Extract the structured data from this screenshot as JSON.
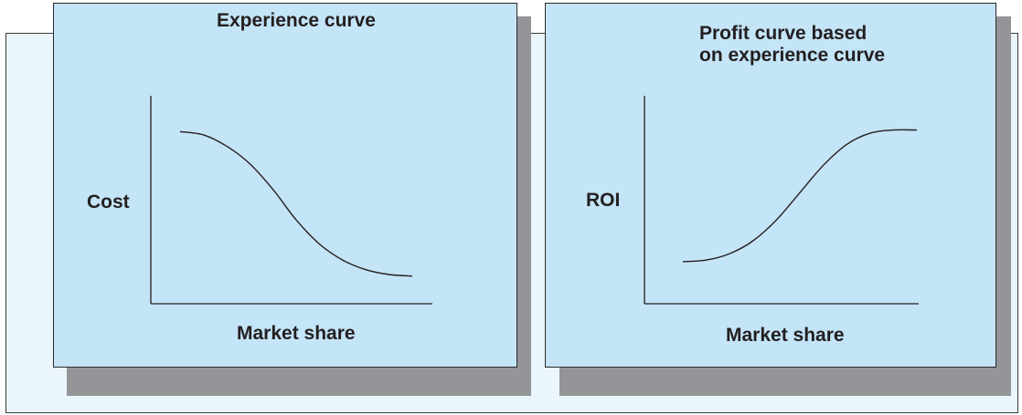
{
  "figure": {
    "background": "#eaf5fc",
    "panel_fill": "#c4e4f7",
    "shadow": "#939598"
  },
  "chart_data": [
    {
      "type": "line",
      "title": "Experience curve",
      "xlabel": "Market share",
      "ylabel": "Cost",
      "trend": "decreasing",
      "x": [
        0,
        0.1,
        0.2,
        0.3,
        0.4,
        0.5,
        0.6,
        0.7,
        0.8,
        0.9,
        1.0
      ],
      "y": [
        0.93,
        0.91,
        0.84,
        0.73,
        0.57,
        0.38,
        0.23,
        0.13,
        0.07,
        0.04,
        0.03
      ],
      "xlim": [
        0,
        1
      ],
      "ylim": [
        0,
        1
      ],
      "grid": false,
      "ticks": false
    },
    {
      "type": "line",
      "title": "Profit curve based\non experience curve",
      "xlabel": "Market share",
      "ylabel": "ROI",
      "trend": "increasing",
      "x": [
        0,
        0.1,
        0.2,
        0.3,
        0.4,
        0.5,
        0.6,
        0.7,
        0.8,
        0.9,
        1.0
      ],
      "y": [
        0.12,
        0.13,
        0.17,
        0.25,
        0.38,
        0.55,
        0.72,
        0.85,
        0.92,
        0.94,
        0.94
      ],
      "xlim": [
        0,
        1
      ],
      "ylim": [
        0,
        1
      ],
      "grid": false,
      "ticks": false
    }
  ]
}
